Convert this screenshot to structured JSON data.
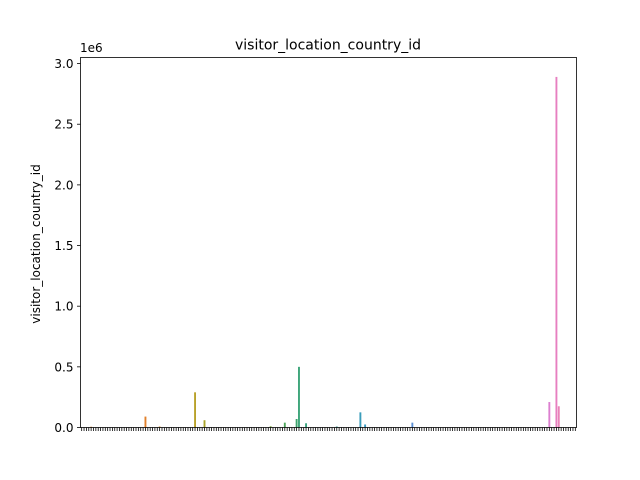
{
  "chart_data": {
    "type": "bar",
    "title": "visitor_location_country_id",
    "xlabel": "",
    "ylabel": "visitor_location_country_id",
    "offset_label": "1e6",
    "ylim": [
      0,
      3050000
    ],
    "yticks": [
      {
        "value": 0,
        "label": "0.0"
      },
      {
        "value": 500000,
        "label": "0.5"
      },
      {
        "value": 1000000,
        "label": "1.0"
      },
      {
        "value": 1500000,
        "label": "1.5"
      },
      {
        "value": 2000000,
        "label": "2.0"
      },
      {
        "value": 2500000,
        "label": "2.5"
      },
      {
        "value": 3000000,
        "label": "3.0"
      }
    ],
    "category_count": 210,
    "grid": false,
    "bars": [
      {
        "index": 4,
        "value": 6000,
        "color": "#e1812c"
      },
      {
        "index": 27,
        "value": 90000,
        "color": "#e1812c"
      },
      {
        "index": 33,
        "value": 8000,
        "color": "#d88a2c"
      },
      {
        "index": 48,
        "value": 290000,
        "color": "#b8a12a"
      },
      {
        "index": 52,
        "value": 60000,
        "color": "#a9a32a"
      },
      {
        "index": 80,
        "value": 10000,
        "color": "#7aa83d"
      },
      {
        "index": 86,
        "value": 40000,
        "color": "#4ea65c"
      },
      {
        "index": 91,
        "value": 70000,
        "color": "#3fa46d"
      },
      {
        "index": 92,
        "value": 500000,
        "color": "#3ba478"
      },
      {
        "index": 95,
        "value": 35000,
        "color": "#39a37f"
      },
      {
        "index": 108,
        "value": 8000,
        "color": "#38a19a"
      },
      {
        "index": 118,
        "value": 125000,
        "color": "#3a9dbb"
      },
      {
        "index": 120,
        "value": 25000,
        "color": "#3c9bc3"
      },
      {
        "index": 140,
        "value": 40000,
        "color": "#5a8fd4"
      },
      {
        "index": 198,
        "value": 210000,
        "color": "#dc7fd0"
      },
      {
        "index": 201,
        "value": 2890000,
        "color": "#e77fc0"
      },
      {
        "index": 202,
        "value": 175000,
        "color": "#e982b8"
      }
    ]
  }
}
